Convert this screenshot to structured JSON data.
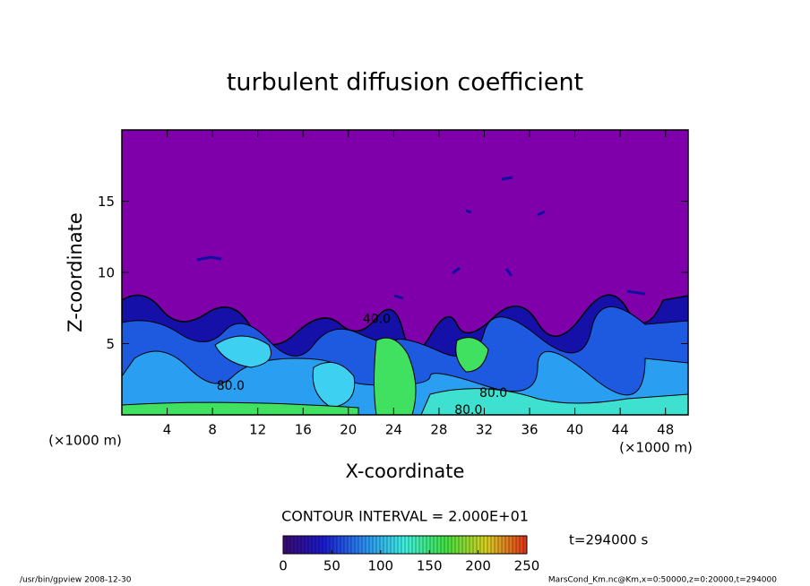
{
  "chart_data": {
    "type": "contour",
    "title": "turbulent diffusion coefficient",
    "x_label": "X-coordinate",
    "y_label": "Z-coordinate",
    "x_unit": "(×1000 m)",
    "y_unit": "(×1000 m)",
    "xlim": [
      0,
      50
    ],
    "xticks": [
      4,
      8,
      12,
      16,
      20,
      24,
      28,
      32,
      36,
      40,
      44,
      48
    ],
    "ylim": [
      0,
      20
    ],
    "yticks": [
      5,
      10,
      15
    ],
    "contour_labels": [
      {
        "text": "40.0",
        "x": 22.5,
        "y": 6.7
      },
      {
        "text": "80.0",
        "x": 9.6,
        "y": 2.0
      },
      {
        "text": "80.0",
        "x": 32.8,
        "y": 1.5
      },
      {
        "text": "80.0",
        "x": 30.6,
        "y": 0.3
      }
    ],
    "contour_interval": "CONTOUR INTERVAL = 2.000E+01",
    "colorbar": {
      "lim": [
        0,
        250
      ],
      "ticks": [
        0,
        50,
        100,
        150,
        200,
        250
      ],
      "colormap": [
        "#3a0a6e",
        "#1a1ad0",
        "#2a8ef0",
        "#3ef0e0",
        "#40e040",
        "#d8d020",
        "#e03018"
      ]
    },
    "time_label": "t=294000 s",
    "footer_left": "/usr/bin/gpview   2008-12-30",
    "footer_right": "MarsCond_Km.nc@Km,x=0:50000,z=0:20000,t=294000"
  }
}
